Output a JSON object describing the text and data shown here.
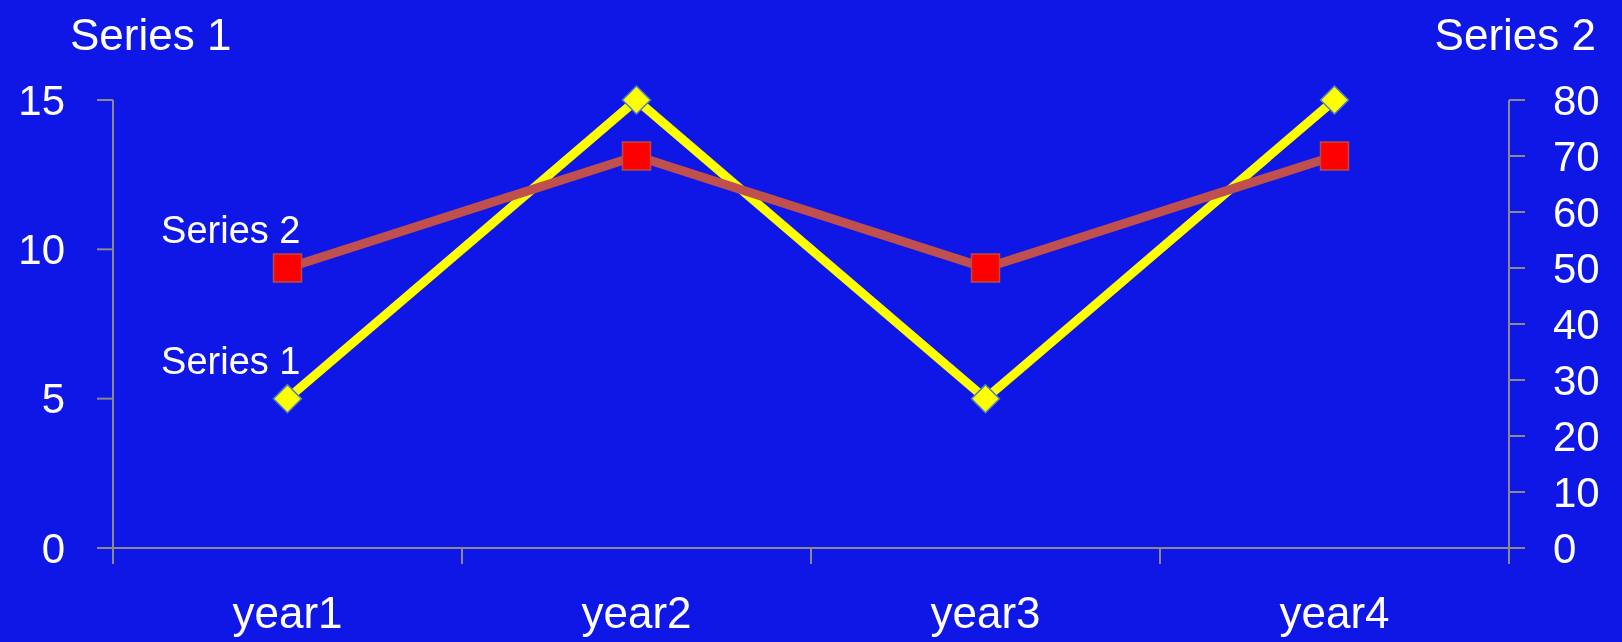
{
  "chart_data": {
    "type": "line",
    "ylabel": "Series 1",
    "y2label": "Series 2",
    "categories": [
      "year1",
      "year2",
      "year3",
      "year4"
    ],
    "series": [
      {
        "name": "Series 1",
        "color": "#ffff00",
        "values": [
          5,
          15,
          5,
          15
        ],
        "marker": "diamond"
      },
      {
        "name": "Series 2",
        "color": "#c0504d",
        "colors": [
          "#ff0000",
          "#ff0000",
          "#ff0000",
          "#ff0000"
        ],
        "values": [
          50,
          70,
          50,
          70
        ],
        "axis": "y2",
        "marker": "square"
      }
    ],
    "ylim": [
      0,
      15
    ],
    "yticks": [
      0,
      5,
      10,
      15
    ],
    "y2lim": [
      0,
      80
    ],
    "y2ticks": [
      0,
      10,
      20,
      30,
      40,
      50,
      60,
      70,
      80
    ]
  }
}
